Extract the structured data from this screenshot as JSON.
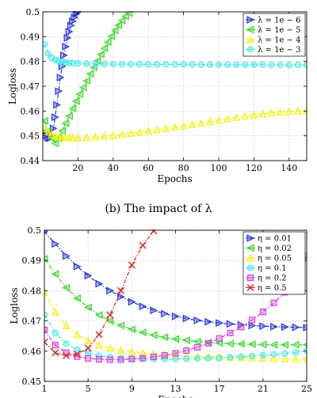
{
  "figure": {
    "caption_b": "(b) The impact of λ"
  },
  "chart_data": [
    {
      "type": "line",
      "id": "lambda",
      "title": "",
      "xlabel": "Epochs",
      "ylabel": "Logloss",
      "xlim": [
        0,
        150
      ],
      "ylim": [
        0.44,
        0.5
      ],
      "xticks": [
        20,
        40,
        60,
        80,
        100,
        120,
        140
      ],
      "yticks": [
        0.44,
        0.45,
        0.46,
        0.47,
        0.48,
        0.49,
        0.5
      ],
      "ytick_labels": [
        "0.44",
        "0.45",
        "0.46",
        "0.47",
        "0.48",
        "0.49",
        "0.5"
      ],
      "legend_position": "top-right",
      "grid": true,
      "series": [
        {
          "name": "λ = 1e − 6",
          "color": "#1f2fd6",
          "marker": "triangle-right",
          "x": [
            1,
            2,
            3,
            4,
            5,
            6,
            7,
            8,
            9,
            10,
            11,
            12,
            13,
            14,
            15,
            16,
            17,
            18,
            19,
            20
          ],
          "y": [
            0.4515,
            0.45,
            0.4492,
            0.449,
            0.45,
            0.453,
            0.4575,
            0.4625,
            0.468,
            0.4735,
            0.478,
            0.4825,
            0.486,
            0.4895,
            0.492,
            0.4945,
            0.4962,
            0.4978,
            0.4992,
            0.5
          ]
        },
        {
          "name": "λ = 1e − 5",
          "color": "#37d62a",
          "marker": "triangle-left",
          "x": [
            1,
            3,
            5,
            7,
            9,
            11,
            13,
            15,
            17,
            19,
            21,
            23,
            25,
            27,
            29,
            31,
            33,
            35,
            37,
            39,
            41,
            43,
            45,
            47,
            49
          ],
          "y": [
            0.456,
            0.452,
            0.449,
            0.447,
            0.449,
            0.452,
            0.455,
            0.458,
            0.461,
            0.464,
            0.4668,
            0.4695,
            0.4722,
            0.475,
            0.4776,
            0.4802,
            0.4828,
            0.4853,
            0.4878,
            0.4902,
            0.4925,
            0.4946,
            0.4965,
            0.4982,
            0.4995
          ]
        },
        {
          "name": "λ = 1e − 4",
          "color": "#f2f215",
          "marker": "triangle-up",
          "x": [
            1,
            3,
            5,
            7,
            9,
            11,
            13,
            15,
            17,
            20,
            25,
            30,
            35,
            40,
            45,
            50,
            55,
            60,
            65,
            70,
            75,
            80,
            85,
            90,
            95,
            100,
            105,
            110,
            115,
            120,
            125,
            130,
            135,
            140,
            145,
            150
          ],
          "y": [
            0.453,
            0.4515,
            0.4505,
            0.45,
            0.4497,
            0.4495,
            0.4494,
            0.4493,
            0.4493,
            0.4493,
            0.4494,
            0.4496,
            0.4499,
            0.4502,
            0.4506,
            0.451,
            0.4515,
            0.452,
            0.4525,
            0.453,
            0.4535,
            0.454,
            0.4546,
            0.4552,
            0.4558,
            0.4564,
            0.457,
            0.4575,
            0.458,
            0.4585,
            0.4589,
            0.4593,
            0.4596,
            0.4598,
            0.46,
            0.4602
          ]
        },
        {
          "name": "λ = 1e − 3",
          "color": "#40e8e8",
          "marker": "circle",
          "x": [
            1,
            3,
            5,
            7,
            9,
            11,
            13,
            15,
            17,
            20,
            25,
            30,
            35,
            40,
            45,
            50,
            55,
            60,
            65,
            70,
            75,
            80,
            85,
            90,
            95,
            100,
            105,
            110,
            115,
            120,
            125,
            130,
            135,
            140,
            145,
            150
          ],
          "y": [
            0.487,
            0.4832,
            0.4815,
            0.4806,
            0.4801,
            0.4798,
            0.4796,
            0.4794,
            0.4793,
            0.4792,
            0.4791,
            0.479,
            0.479,
            0.4789,
            0.4789,
            0.4789,
            0.4789,
            0.4788,
            0.4788,
            0.4788,
            0.4788,
            0.4788,
            0.4788,
            0.4787,
            0.4787,
            0.4787,
            0.4787,
            0.4787,
            0.4787,
            0.4787,
            0.4787,
            0.4786,
            0.4786,
            0.4786,
            0.4786,
            0.4786
          ]
        }
      ]
    },
    {
      "type": "line",
      "id": "eta",
      "title": "",
      "xlabel": "Epochs",
      "ylabel": "Logloss",
      "xlim": [
        1,
        25
      ],
      "ylim": [
        0.45,
        0.5
      ],
      "xticks": [
        1,
        5,
        9,
        13,
        17,
        21,
        25
      ],
      "yticks": [
        0.45,
        0.46,
        0.47,
        0.48,
        0.49,
        0.5
      ],
      "ytick_labels": [
        "0.45",
        "0.46",
        "0.47",
        "0.48",
        "0.49",
        "0.5"
      ],
      "legend_position": "top-right",
      "grid": true,
      "series": [
        {
          "name": "η = 0.01",
          "color": "#1f2fd6",
          "marker": "triangle-right",
          "x": [
            1,
            2,
            3,
            4,
            5,
            6,
            7,
            8,
            9,
            10,
            11,
            12,
            13,
            14,
            15,
            16,
            17,
            18,
            19,
            20,
            21,
            22,
            23,
            24,
            25
          ],
          "y": [
            0.4995,
            0.4955,
            0.4915,
            0.488,
            0.485,
            0.4823,
            0.48,
            0.478,
            0.4763,
            0.4748,
            0.4735,
            0.4724,
            0.4715,
            0.4708,
            0.4702,
            0.4697,
            0.4693,
            0.469,
            0.4687,
            0.4685,
            0.4683,
            0.4681,
            0.468,
            0.4679,
            0.4678
          ]
        },
        {
          "name": "η = 0.02",
          "color": "#37d62a",
          "marker": "triangle-left",
          "x": [
            1,
            2,
            3,
            4,
            5,
            6,
            7,
            8,
            9,
            10,
            11,
            12,
            13,
            14,
            15,
            16,
            17,
            18,
            19,
            20,
            21,
            22,
            23,
            24,
            25
          ],
          "y": [
            0.4905,
            0.4855,
            0.481,
            0.4775,
            0.4745,
            0.472,
            0.47,
            0.4685,
            0.4672,
            0.4662,
            0.4653,
            0.4646,
            0.464,
            0.4636,
            0.4632,
            0.4629,
            0.4627,
            0.4625,
            0.4624,
            0.4623,
            0.4622,
            0.4621,
            0.4621,
            0.4621,
            0.4621
          ]
        },
        {
          "name": "η = 0.05",
          "color": "#f2f215",
          "marker": "triangle-up",
          "x": [
            1,
            2,
            3,
            4,
            5,
            6,
            7,
            8,
            9,
            10,
            11,
            12,
            13,
            14,
            15,
            16,
            17,
            18,
            19,
            20,
            21,
            22,
            23,
            24,
            25
          ],
          "y": [
            0.4795,
            0.473,
            0.4685,
            0.4655,
            0.4635,
            0.462,
            0.461,
            0.4603,
            0.4598,
            0.4594,
            0.4591,
            0.4588,
            0.4586,
            0.4584,
            0.4583,
            0.4582,
            0.4581,
            0.458,
            0.4579,
            0.4578,
            0.4577,
            0.4576,
            0.4575,
            0.4574,
            0.4573
          ]
        },
        {
          "name": "η = 0.1",
          "color": "#40e8e8",
          "marker": "circle",
          "x": [
            1,
            2,
            3,
            4,
            5,
            6,
            7,
            8,
            9,
            10,
            11,
            12,
            13,
            14,
            15,
            16,
            17,
            18,
            19,
            20,
            21,
            22,
            23,
            24,
            25
          ],
          "y": [
            0.472,
            0.466,
            0.4625,
            0.4605,
            0.4593,
            0.4585,
            0.458,
            0.4577,
            0.4575,
            0.4574,
            0.4574,
            0.4574,
            0.4574,
            0.4575,
            0.4576,
            0.4577,
            0.4578,
            0.458,
            0.4582,
            0.4584,
            0.4586,
            0.4589,
            0.4592,
            0.4596,
            0.4601
          ]
        },
        {
          "name": "η = 0.2",
          "color": "#d63cd6",
          "marker": "square",
          "x": [
            1,
            2,
            3,
            4,
            5,
            6,
            7,
            8,
            9,
            10,
            11,
            12,
            13,
            14,
            15,
            16,
            17,
            18,
            19,
            20,
            21,
            22,
            23,
            24,
            25
          ],
          "y": [
            0.467,
            0.462,
            0.4595,
            0.4582,
            0.4576,
            0.4573,
            0.4572,
            0.4572,
            0.4574,
            0.4577,
            0.4581,
            0.4586,
            0.4593,
            0.4602,
            0.4613,
            0.4626,
            0.4642,
            0.466,
            0.468,
            0.4703,
            0.473,
            0.476,
            0.4795,
            0.4835,
            0.4915
          ]
        },
        {
          "name": "η = 0.5",
          "color": "#d62020",
          "marker": "x",
          "x": [
            1,
            2,
            3,
            4,
            5,
            6,
            7,
            8,
            9,
            10,
            11
          ],
          "y": [
            0.463,
            0.4595,
            0.4585,
            0.459,
            0.461,
            0.4655,
            0.472,
            0.48,
            0.4885,
            0.495,
            0.4998
          ]
        }
      ]
    }
  ]
}
